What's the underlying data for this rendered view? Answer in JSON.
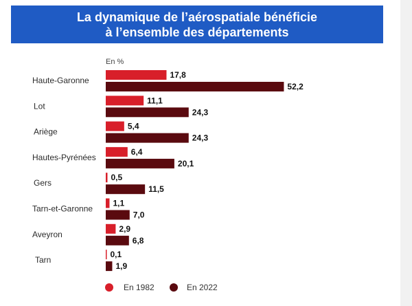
{
  "header": {
    "title_line1": "La dynamique de l’aérospatiale bénéficie",
    "title_line2": "à l’ensemble des départements"
  },
  "colors": {
    "header_bg": "#1f5bc4",
    "series_1982": "#d81f2a",
    "series_2022": "#5a0a0f"
  },
  "chart_data": {
    "type": "bar",
    "orientation": "horizontal",
    "unit_label": "En %",
    "categories": [
      "Haute-Garonne",
      "Lot",
      "Ariège",
      "Hautes-Pyrénées",
      "Gers",
      "Tarn-et-Garonne",
      "Aveyron",
      "Tarn"
    ],
    "series": [
      {
        "name": "En 1982",
        "values": [
          17.8,
          11.1,
          5.4,
          6.4,
          0.5,
          1.1,
          2.9,
          0.1
        ],
        "labels": [
          "17,8",
          "11,1",
          "5,4",
          "6,4",
          "0,5",
          "1,1",
          "2,9",
          "0,1"
        ]
      },
      {
        "name": "En 2022",
        "values": [
          52.2,
          24.3,
          24.3,
          20.1,
          11.5,
          7.0,
          6.8,
          1.9
        ],
        "labels": [
          "52,2",
          "24,3",
          "24,3",
          "20,1",
          "11,5",
          "7,0",
          "6,8",
          "1,9"
        ]
      }
    ],
    "legend_position": "bottom",
    "grid": false
  }
}
